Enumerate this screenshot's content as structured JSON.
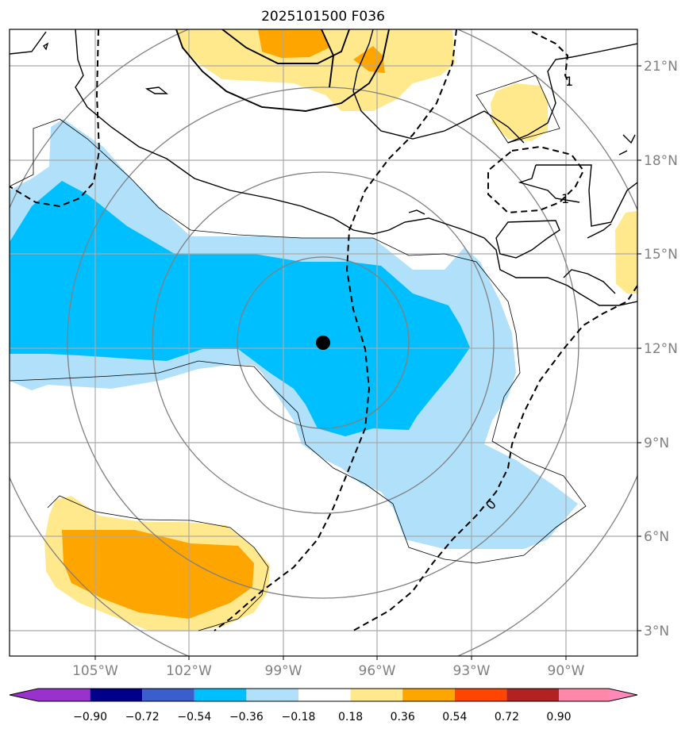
{
  "title": "2025101500 F036",
  "map": {
    "lat_labels": [
      "21°N",
      "18°N",
      "15°N",
      "12°N",
      "9°N",
      "6°N",
      "3°N"
    ],
    "lon_labels": [
      "105°W",
      "102°W",
      "99°W",
      "96°W",
      "93°W",
      "90°W"
    ],
    "contour_labels": [
      "1",
      "1",
      "0"
    ],
    "center_marker": "storm-center"
  },
  "colorbar": {
    "levels": [
      "−0.90",
      "−0.72",
      "−0.54",
      "−0.36",
      "−0.18",
      "0.18",
      "0.36",
      "0.54",
      "0.72",
      "0.90"
    ],
    "colors": [
      "#9932cc",
      "#00008b",
      "#3a5fcd",
      "#00bfff",
      "#b0e0fa",
      "#ffffff",
      "#ffe98c",
      "#ffa500",
      "#ff4500",
      "#b22222",
      "#ff88aa",
      "#ff88bb"
    ]
  }
}
